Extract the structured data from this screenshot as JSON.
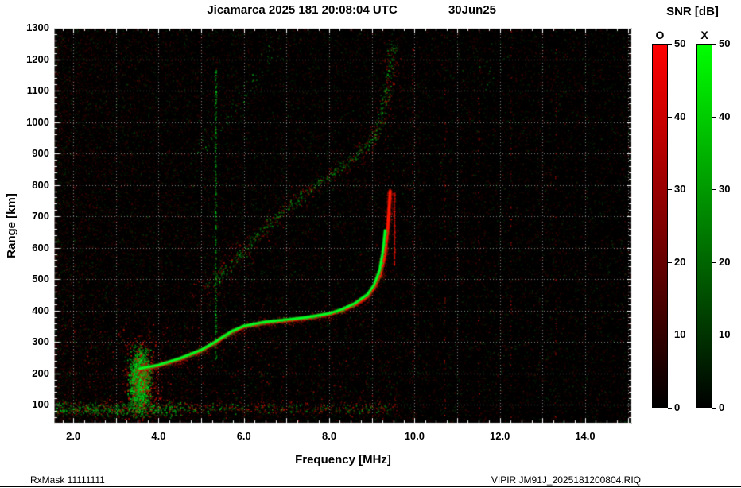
{
  "header": {
    "title": "Jicamarca 2025 181 20:08:04 UTC",
    "date": "30Jun25"
  },
  "footer": {
    "left": "RxMask 11111111",
    "right": "VIPIR  JM91J_2025181200804.RIQ"
  },
  "colorbar": {
    "title": "SNR [dB]",
    "min": 0,
    "max": 50,
    "ticks": [
      0,
      10,
      20,
      30,
      40,
      50
    ],
    "bars": [
      {
        "id": "o",
        "label": "O",
        "top_color": "#ff0000",
        "bottom_color": "#000000"
      },
      {
        "id": "x",
        "label": "X",
        "top_color": "#00ff00",
        "bottom_color": "#000000"
      }
    ]
  },
  "chart_data": {
    "type": "heatmap",
    "title": "Jicamarca 2025 181 20:08:04 UTC 30Jun25",
    "xlabel": "Frequency [MHz]",
    "ylabel": "Range [km]",
    "xlim": [
      1.55,
      15.1
    ],
    "ylim": [
      40,
      1300
    ],
    "x_ticks": [
      2,
      4,
      6,
      8,
      10,
      12,
      14
    ],
    "x_tick_labels": [
      "2.0",
      "4.0",
      "6.0",
      "8.0",
      "10.0",
      "12.0",
      "14.0"
    ],
    "y_ticks": [
      100,
      200,
      300,
      400,
      500,
      600,
      700,
      800,
      900,
      1000,
      1100,
      1200,
      1300
    ],
    "grid": {
      "x_step_mhz": 1,
      "y_step_km": 100,
      "style": "dotted",
      "color": "#ffffff"
    },
    "background": "#000000",
    "legend": {
      "O": "#ff0000",
      "X": "#00ff00",
      "scale": "SNR 0-50 dB"
    },
    "traces": [
      {
        "name": "lower-noise-band",
        "mode": "O",
        "style": "hband",
        "y": 185,
        "jitter": 48,
        "x1": 1.7,
        "x2": 9.6,
        "density": 0.2
      },
      {
        "name": "mid-noise-band",
        "mode": "O",
        "style": "hband",
        "y": 290,
        "jitter": 30,
        "x1": 1.7,
        "x2": 6.0,
        "density": 0.15
      },
      {
        "name": "rfi-line-green",
        "mode": "X",
        "style": "vline",
        "f": 5.33,
        "y1": 240,
        "y2": 1170,
        "density": 0.35,
        "spread": 1.4
      },
      {
        "name": "rfi-line-red-1",
        "mode": "O",
        "style": "vline",
        "f": 9.95,
        "y1": 50,
        "y2": 1290,
        "density": 0.07,
        "spread": 1.2
      },
      {
        "name": "rfi-line-red-2",
        "mode": "O",
        "style": "vline",
        "f": 10.7,
        "y1": 50,
        "y2": 1290,
        "density": 0.06,
        "spread": 1.2
      },
      {
        "name": "rfi-line-red-3",
        "mode": "O",
        "style": "vline",
        "f": 11.5,
        "y1": 50,
        "y2": 1290,
        "density": 0.05,
        "spread": 1.2
      },
      {
        "name": "rfi-line-red-4",
        "mode": "O",
        "style": "vline",
        "f": 12.25,
        "y1": 50,
        "y2": 1290,
        "density": 0.05,
        "spread": 1.2
      },
      {
        "name": "rfi-line-red-5",
        "mode": "O",
        "style": "vline",
        "f": 13.3,
        "y1": 50,
        "y2": 1290,
        "density": 0.04,
        "spread": 1.2
      },
      {
        "name": "third-hop-x",
        "mode": "X",
        "style": "diffuse",
        "spread": 13,
        "density": 0.16,
        "points": [
          [
            4.9,
            880
          ],
          [
            5.4,
            980
          ],
          [
            5.9,
            1075
          ],
          [
            6.4,
            1170
          ],
          [
            6.8,
            1245
          ]
        ]
      },
      {
        "name": "topright-scatter-x",
        "mode": "X",
        "style": "diffuse",
        "spread": 25,
        "density": 0.1,
        "points": [
          [
            11.0,
            1150
          ],
          [
            12.3,
            1180
          ]
        ]
      },
      {
        "name": "second-hop-o",
        "mode": "O",
        "style": "diffuse",
        "spread": 17,
        "density": 0.55,
        "points": [
          [
            4.85,
            440
          ],
          [
            5.3,
            500
          ],
          [
            5.8,
            570
          ],
          [
            6.3,
            640
          ],
          [
            6.8,
            705
          ],
          [
            7.3,
            760
          ],
          [
            7.8,
            810
          ],
          [
            8.3,
            855
          ],
          [
            8.7,
            895
          ],
          [
            9.0,
            935
          ],
          [
            9.2,
            990
          ],
          [
            9.32,
            1060
          ],
          [
            9.4,
            1150
          ],
          [
            9.46,
            1240
          ]
        ]
      },
      {
        "name": "second-hop-x",
        "mode": "X",
        "style": "diffuse",
        "spread": 8,
        "density": 0.5,
        "points": [
          [
            5.15,
            470
          ],
          [
            5.6,
            535
          ],
          [
            6.05,
            600
          ],
          [
            6.5,
            665
          ],
          [
            6.95,
            720
          ],
          [
            7.4,
            770
          ],
          [
            7.85,
            815
          ],
          [
            8.3,
            860
          ],
          [
            8.7,
            900
          ],
          [
            9.0,
            945
          ],
          [
            9.2,
            1000
          ],
          [
            9.3,
            1070
          ],
          [
            9.38,
            1160
          ],
          [
            9.44,
            1245
          ]
        ]
      },
      {
        "name": "e-region-x",
        "mode": "X",
        "style": "cluster",
        "center": [
          3.55,
          180
        ],
        "sx": 0.13,
        "sy": 52,
        "count": 1600
      },
      {
        "name": "e-region-o",
        "mode": "O",
        "style": "cluster",
        "center": [
          3.62,
          190
        ],
        "sx": 0.22,
        "sy": 75,
        "count": 420
      },
      {
        "name": "ground-band-x",
        "mode": "X",
        "style": "hband",
        "y": 88,
        "jitter": 7,
        "x1": 1.55,
        "x2": 4.6,
        "density": 1.0
      },
      {
        "name": "ground-band-x-ext",
        "mode": "X",
        "style": "hband",
        "y": 88,
        "jitter": 5,
        "x1": 4.6,
        "x2": 9.5,
        "density": 0.22
      },
      {
        "name": "ground-band-o",
        "mode": "O",
        "style": "hband",
        "y": 90,
        "jitter": 9,
        "x1": 1.6,
        "x2": 9.6,
        "density": 0.4
      },
      {
        "name": "f1-hop-o",
        "mode": "O",
        "style": "line",
        "width": 3.2,
        "glow": 6,
        "points": [
          [
            3.55,
            212
          ],
          [
            4.0,
            224
          ],
          [
            4.5,
            245
          ],
          [
            5.0,
            272
          ],
          [
            5.3,
            295
          ],
          [
            5.7,
            330
          ],
          [
            6.0,
            348
          ],
          [
            6.5,
            361
          ],
          [
            7.0,
            368
          ],
          [
            7.5,
            376
          ],
          [
            8.0,
            388
          ],
          [
            8.3,
            400
          ],
          [
            8.6,
            418
          ],
          [
            8.9,
            445
          ],
          [
            9.05,
            472
          ],
          [
            9.2,
            515
          ],
          [
            9.3,
            575
          ],
          [
            9.37,
            655
          ],
          [
            9.43,
            780
          ]
        ]
      },
      {
        "name": "f1-hop-x",
        "mode": "X",
        "style": "line",
        "width": 2.4,
        "glow": 3,
        "points": [
          [
            3.55,
            215
          ],
          [
            4.0,
            227
          ],
          [
            4.5,
            248
          ],
          [
            5.0,
            275
          ],
          [
            5.3,
            298
          ],
          [
            5.7,
            333
          ],
          [
            6.0,
            351
          ],
          [
            6.5,
            364
          ],
          [
            7.0,
            371
          ],
          [
            7.5,
            379
          ],
          [
            8.0,
            391
          ],
          [
            8.3,
            404
          ],
          [
            8.6,
            423
          ],
          [
            8.9,
            452
          ],
          [
            9.05,
            482
          ],
          [
            9.18,
            528
          ],
          [
            9.26,
            590
          ],
          [
            9.31,
            655
          ]
        ]
      },
      {
        "name": "f1-asymptote-o",
        "mode": "O",
        "style": "vline",
        "f": 9.52,
        "y1": 545,
        "y2": 778,
        "density": 1.3,
        "spread": 1.0
      }
    ]
  }
}
